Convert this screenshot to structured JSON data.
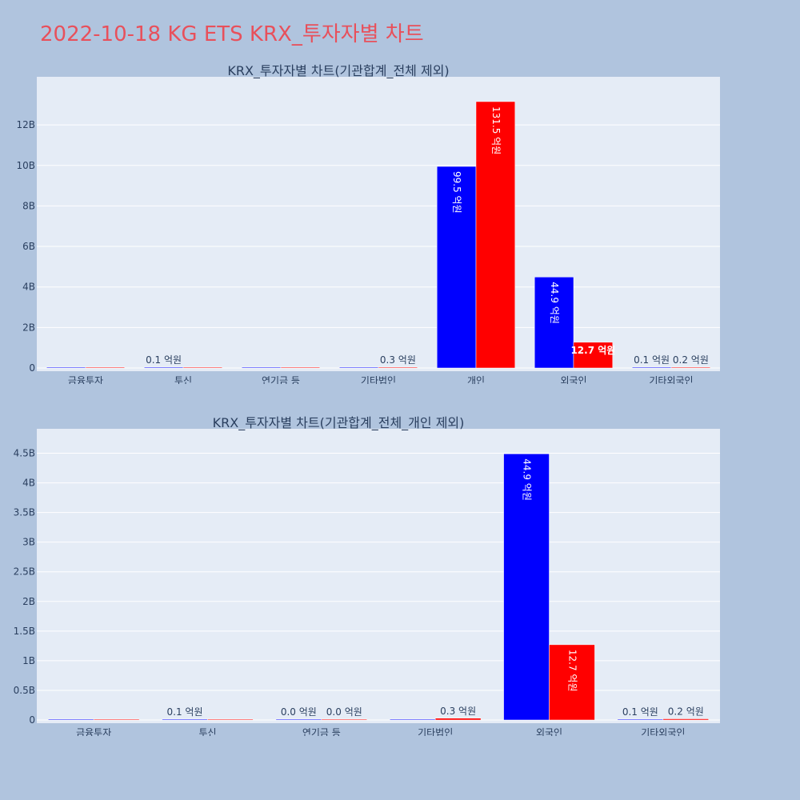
{
  "page": {
    "title": "2022-10-18 KG ETS KRX_투자자별 차트",
    "title_color": "#e8505b",
    "background": "#b0c4de"
  },
  "colors": {
    "plot_bg": "#e5ecf6",
    "grid": "#ffffff",
    "text": "#2a3f5f",
    "series_a": "#0000ff",
    "series_b": "#ff0000"
  },
  "chart_data": [
    {
      "type": "bar",
      "title": "KRX_투자자별 차트(기관합계_전체 제외)",
      "xlabel": "",
      "ylabel": "",
      "grid": true,
      "ylim": [
        0,
        13.9
      ],
      "y_unit_suffix": "B",
      "yticks": [
        0,
        2,
        4,
        6,
        8,
        10,
        12
      ],
      "ytick_labels": [
        "0",
        "2B",
        "4B",
        "6B",
        "8B",
        "10B",
        "12B"
      ],
      "categories": [
        "금융투자",
        "투신",
        "연기금 등",
        "기타법인",
        "개인",
        "외국인",
        "기타외국인"
      ],
      "series": [
        {
          "values": [
            0,
            0.01,
            0,
            0,
            9.95,
            4.49,
            0.01
          ],
          "labels": [
            "",
            "0.1 억원",
            "",
            "",
            "99.5 억원",
            "44.9 억원",
            "0.1 억원"
          ]
        },
        {
          "values": [
            0,
            0,
            0,
            0.03,
            13.15,
            1.27,
            0.02
          ],
          "labels": [
            "",
            "",
            "",
            "0.3 억원",
            "131.5 억원",
            "12.7 억원",
            "0.2 억원"
          ]
        }
      ]
    },
    {
      "type": "bar",
      "title": "KRX_투자자별 차트(기관합계_전체_개인 제외)",
      "xlabel": "",
      "ylabel": "",
      "grid": true,
      "ylim": [
        0,
        4.75
      ],
      "y_unit_suffix": "B",
      "yticks": [
        0,
        0.5,
        1,
        1.5,
        2,
        2.5,
        3,
        3.5,
        4,
        4.5
      ],
      "ytick_labels": [
        "0",
        "0.5B",
        "1B",
        "1.5B",
        "2B",
        "2.5B",
        "3B",
        "3.5B",
        "4B",
        "4.5B"
      ],
      "categories": [
        "금융투자",
        "투신",
        "연기금 등",
        "기타법인",
        "외국인",
        "기타외국인"
      ],
      "series": [
        {
          "values": [
            0,
            0.01,
            0,
            0,
            4.49,
            0.01
          ],
          "labels": [
            "",
            "0.1 억원",
            "0.0 억원",
            "",
            "44.9 억원",
            "0.1 억원"
          ]
        },
        {
          "values": [
            0,
            0,
            0,
            0.03,
            1.27,
            0.02
          ],
          "labels": [
            "",
            "",
            "0.0 억원",
            "0.3 억원",
            "12.7 억원",
            "0.2 억원"
          ]
        }
      ]
    }
  ]
}
